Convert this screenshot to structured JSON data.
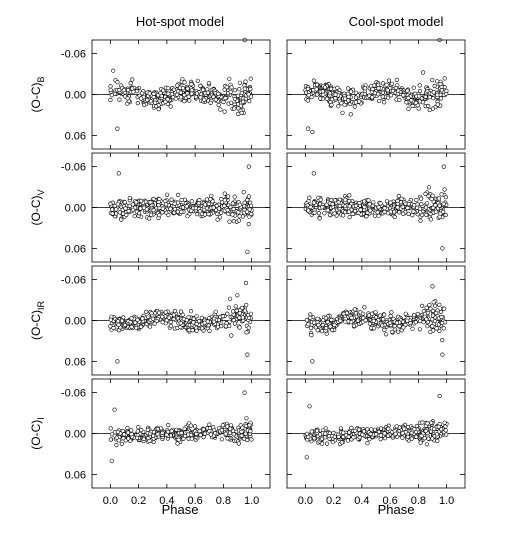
{
  "titles": [
    "Hot-spot model",
    "Cool-spot model"
  ],
  "xlabel": "Phase",
  "ylabels": [
    {
      "main": "(O-C)",
      "sub": "B"
    },
    {
      "main": "(O-C)",
      "sub": "V"
    },
    {
      "main": "(O-C)",
      "sub": "IR"
    },
    {
      "main": "(O-C)",
      "sub": "I"
    }
  ],
  "chart_data": {
    "type": "scatter",
    "x_range": [
      -0.13,
      1.13
    ],
    "y_range": [
      -0.08,
      0.08
    ],
    "y_inverted": true,
    "x_ticks": [
      "0.0",
      "0.2",
      "0.4",
      "0.6",
      "0.8",
      "1.0"
    ],
    "x_tick_values": [
      0,
      0.2,
      0.4,
      0.6,
      0.8,
      1.0
    ],
    "y_ticks": [
      "-0.06",
      "0.00",
      "0.06"
    ],
    "y_tick_values": [
      -0.06,
      0.0,
      0.06
    ],
    "zero_line": true,
    "panels": [
      {
        "row": "B",
        "model": "Hot-spot model",
        "n": 380,
        "scatter": 0.012,
        "seed": 11,
        "features": [
          {
            "phase": 0.02,
            "offset": -0.035
          },
          {
            "phase": 0.05,
            "offset": 0.05
          },
          {
            "phase": 0.95,
            "offset": -0.08
          }
        ]
      },
      {
        "row": "B",
        "model": "Cool-spot model",
        "n": 380,
        "scatter": 0.012,
        "seed": 12,
        "features": [
          {
            "phase": 0.02,
            "offset": 0.05
          },
          {
            "phase": 0.05,
            "offset": 0.055
          },
          {
            "phase": 0.95,
            "offset": -0.08
          }
        ]
      },
      {
        "row": "V",
        "model": "Hot-spot model",
        "n": 380,
        "scatter": 0.011,
        "seed": 21,
        "features": [
          {
            "phase": 0.06,
            "offset": -0.05
          },
          {
            "phase": 0.98,
            "offset": -0.06
          },
          {
            "phase": 0.97,
            "offset": 0.065
          }
        ]
      },
      {
        "row": "V",
        "model": "Cool-spot model",
        "n": 380,
        "scatter": 0.011,
        "seed": 22,
        "features": [
          {
            "phase": 0.06,
            "offset": -0.05
          },
          {
            "phase": 0.98,
            "offset": -0.06
          },
          {
            "phase": 0.97,
            "offset": 0.06
          }
        ]
      },
      {
        "row": "IR",
        "model": "Hot-spot model",
        "n": 380,
        "scatter": 0.01,
        "seed": 31,
        "features": [
          {
            "phase": 0.05,
            "offset": 0.06
          },
          {
            "phase": 0.96,
            "offset": -0.055
          },
          {
            "phase": 0.97,
            "offset": 0.05
          }
        ]
      },
      {
        "row": "IR",
        "model": "Cool-spot model",
        "n": 380,
        "scatter": 0.01,
        "seed": 32,
        "features": [
          {
            "phase": 0.05,
            "offset": 0.06
          },
          {
            "phase": 0.9,
            "offset": -0.05
          },
          {
            "phase": 0.97,
            "offset": 0.05
          }
        ]
      },
      {
        "row": "I",
        "model": "Hot-spot model",
        "n": 380,
        "scatter": 0.008,
        "seed": 41,
        "features": [
          {
            "phase": 0.03,
            "offset": -0.035
          },
          {
            "phase": 0.01,
            "offset": 0.04
          },
          {
            "phase": 0.95,
            "offset": -0.06
          }
        ]
      },
      {
        "row": "I",
        "model": "Cool-spot model",
        "n": 380,
        "scatter": 0.008,
        "seed": 42,
        "features": [
          {
            "phase": 0.03,
            "offset": -0.04
          },
          {
            "phase": 0.01,
            "offset": 0.035
          },
          {
            "phase": 0.95,
            "offset": -0.055
          }
        ]
      }
    ]
  }
}
